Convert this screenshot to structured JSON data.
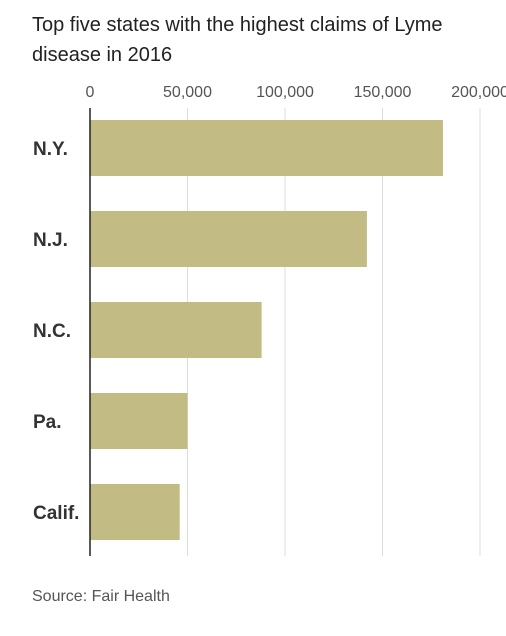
{
  "title": "Top five states with the highest claims of Lyme disease in 2016",
  "source": "Source: Fair Health",
  "chart_data": {
    "type": "bar",
    "orientation": "horizontal",
    "categories": [
      "N.Y.",
      "N.J.",
      "N.C.",
      "Pa.",
      "Calif."
    ],
    "values": [
      181000,
      142000,
      88000,
      50000,
      46000
    ],
    "xlim": [
      0,
      200000
    ],
    "x_ticks": [
      0,
      50000,
      100000,
      150000,
      200000
    ],
    "x_tick_labels": [
      "0",
      "50,000",
      "100,000",
      "150,000",
      "200,000"
    ],
    "grid": true,
    "bar_color": "#c2bb83"
  }
}
